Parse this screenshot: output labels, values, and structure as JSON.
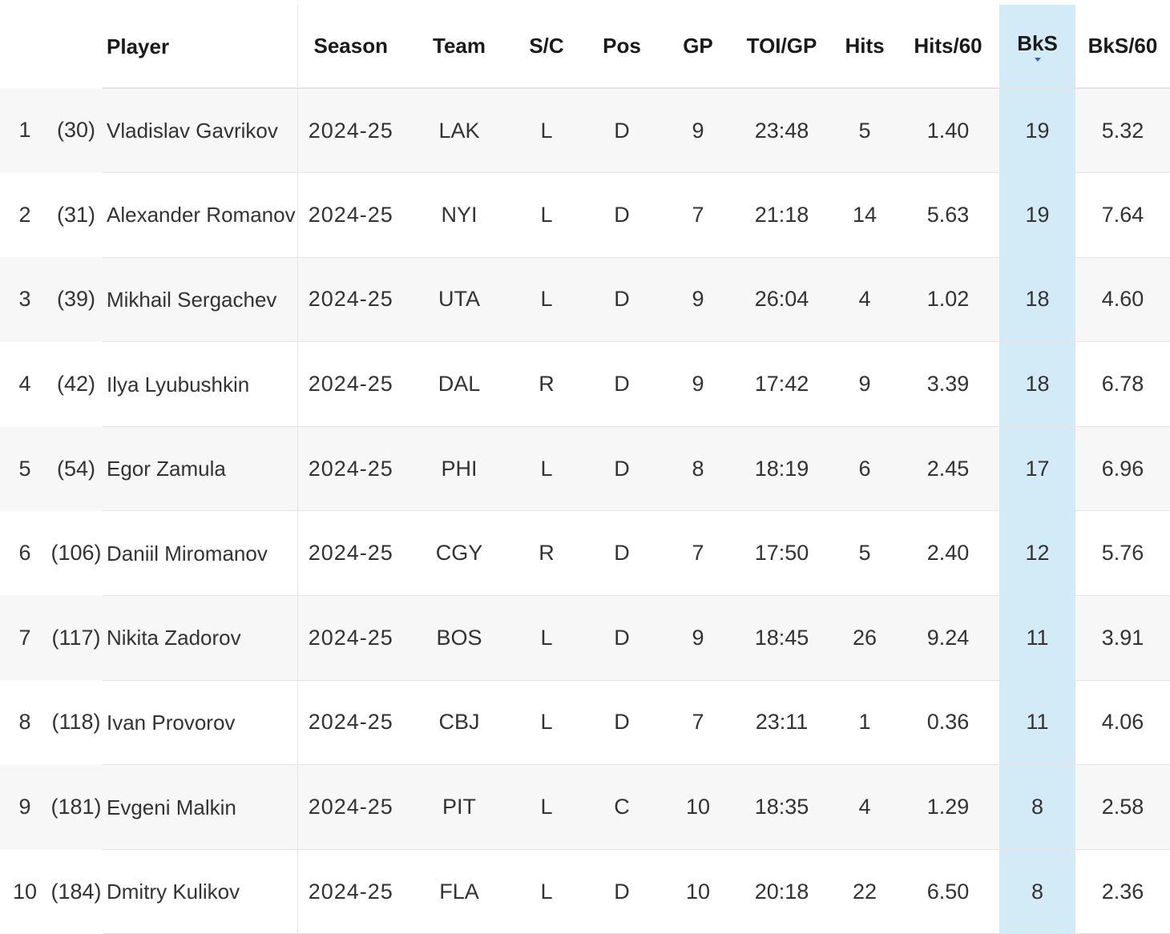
{
  "table": {
    "columns": {
      "rank": "",
      "prev_rank": "",
      "player": "Player",
      "season": "Season",
      "team": "Team",
      "sc": "S/C",
      "pos": "Pos",
      "gp": "GP",
      "toi_gp": "TOI/GP",
      "hits": "Hits",
      "hits60": "Hits/60",
      "bks": "BkS",
      "bks60": "BkS/60"
    },
    "sorted_column": "BkS",
    "highlight_color": "#d3eaf7",
    "rows": [
      {
        "rank": "1",
        "prev": "(30)",
        "player": "Vladislav Gavrikov",
        "season": "2024-25",
        "team": "LAK",
        "sc": "L",
        "pos": "D",
        "gp": "9",
        "toi": "23:48",
        "hits": "5",
        "hits60": "1.40",
        "bks": "19",
        "bks60": "5.32"
      },
      {
        "rank": "2",
        "prev": "(31)",
        "player": "Alexander Romanov",
        "season": "2024-25",
        "team": "NYI",
        "sc": "L",
        "pos": "D",
        "gp": "7",
        "toi": "21:18",
        "hits": "14",
        "hits60": "5.63",
        "bks": "19",
        "bks60": "7.64"
      },
      {
        "rank": "3",
        "prev": "(39)",
        "player": "Mikhail Sergachev",
        "season": "2024-25",
        "team": "UTA",
        "sc": "L",
        "pos": "D",
        "gp": "9",
        "toi": "26:04",
        "hits": "4",
        "hits60": "1.02",
        "bks": "18",
        "bks60": "4.60"
      },
      {
        "rank": "4",
        "prev": "(42)",
        "player": "Ilya Lyubushkin",
        "season": "2024-25",
        "team": "DAL",
        "sc": "R",
        "pos": "D",
        "gp": "9",
        "toi": "17:42",
        "hits": "9",
        "hits60": "3.39",
        "bks": "18",
        "bks60": "6.78"
      },
      {
        "rank": "5",
        "prev": "(54)",
        "player": "Egor Zamula",
        "season": "2024-25",
        "team": "PHI",
        "sc": "L",
        "pos": "D",
        "gp": "8",
        "toi": "18:19",
        "hits": "6",
        "hits60": "2.45",
        "bks": "17",
        "bks60": "6.96"
      },
      {
        "rank": "6",
        "prev": "(106)",
        "player": "Daniil Miromanov",
        "season": "2024-25",
        "team": "CGY",
        "sc": "R",
        "pos": "D",
        "gp": "7",
        "toi": "17:50",
        "hits": "5",
        "hits60": "2.40",
        "bks": "12",
        "bks60": "5.76"
      },
      {
        "rank": "7",
        "prev": "(117)",
        "player": "Nikita Zadorov",
        "season": "2024-25",
        "team": "BOS",
        "sc": "L",
        "pos": "D",
        "gp": "9",
        "toi": "18:45",
        "hits": "26",
        "hits60": "9.24",
        "bks": "11",
        "bks60": "3.91"
      },
      {
        "rank": "8",
        "prev": "(118)",
        "player": "Ivan Provorov",
        "season": "2024-25",
        "team": "CBJ",
        "sc": "L",
        "pos": "D",
        "gp": "7",
        "toi": "23:11",
        "hits": "1",
        "hits60": "0.36",
        "bks": "11",
        "bks60": "4.06"
      },
      {
        "rank": "9",
        "prev": "(181)",
        "player": "Evgeni Malkin",
        "season": "2024-25",
        "team": "PIT",
        "sc": "L",
        "pos": "C",
        "gp": "10",
        "toi": "18:35",
        "hits": "4",
        "hits60": "1.29",
        "bks": "8",
        "bks60": "2.58"
      },
      {
        "rank": "10",
        "prev": "(184)",
        "player": "Dmitry Kulikov",
        "season": "2024-25",
        "team": "FLA",
        "sc": "L",
        "pos": "D",
        "gp": "10",
        "toi": "20:18",
        "hits": "22",
        "hits60": "6.50",
        "bks": "8",
        "bks60": "2.36"
      }
    ]
  }
}
